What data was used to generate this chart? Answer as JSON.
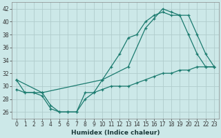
{
  "title": "",
  "xlabel": "Humidex (Indice chaleur)",
  "background_color": "#cce8e8",
  "grid_color": "#b0cccc",
  "line_color": "#1a7a6e",
  "xlim": [
    -0.5,
    23.5
  ],
  "ylim": [
    25.0,
    43.0
  ],
  "yticks": [
    26,
    28,
    30,
    32,
    34,
    36,
    38,
    40,
    42
  ],
  "xticks": [
    0,
    1,
    2,
    3,
    4,
    5,
    6,
    7,
    8,
    9,
    10,
    11,
    12,
    13,
    14,
    15,
    16,
    17,
    18,
    19,
    20,
    21,
    22,
    23
  ],
  "series1_x": [
    0,
    1,
    2,
    3,
    4,
    5,
    6,
    7,
    8,
    9,
    10,
    11,
    12,
    13,
    14,
    15,
    16,
    17,
    18,
    19,
    20,
    21,
    22,
    23
  ],
  "series1_y": [
    31,
    29,
    29,
    29,
    27,
    26,
    26,
    26,
    29,
    29,
    31,
    33,
    35,
    37.5,
    38,
    40,
    41,
    41.5,
    41,
    41,
    38,
    35,
    33,
    33
  ],
  "series2_x": [
    0,
    3,
    10,
    13,
    15,
    16,
    17,
    18,
    19,
    20,
    21,
    22,
    23
  ],
  "series2_y": [
    31,
    29,
    31,
    33,
    39,
    40.5,
    42,
    41.5,
    41,
    41,
    38,
    35,
    33
  ],
  "series3_x": [
    0,
    1,
    2,
    3,
    4,
    5,
    6,
    7,
    8,
    9,
    10,
    11,
    12,
    13,
    14,
    15,
    16,
    17,
    18,
    19,
    20,
    21,
    22,
    23
  ],
  "series3_y": [
    29.5,
    29,
    29,
    28.5,
    26.5,
    26,
    26,
    26,
    28,
    29,
    29.5,
    30,
    30,
    30,
    30.5,
    31,
    31.5,
    32,
    32,
    32.5,
    32.5,
    33,
    33,
    33
  ],
  "tick_fontsize": 5.5,
  "xlabel_fontsize": 6.5
}
